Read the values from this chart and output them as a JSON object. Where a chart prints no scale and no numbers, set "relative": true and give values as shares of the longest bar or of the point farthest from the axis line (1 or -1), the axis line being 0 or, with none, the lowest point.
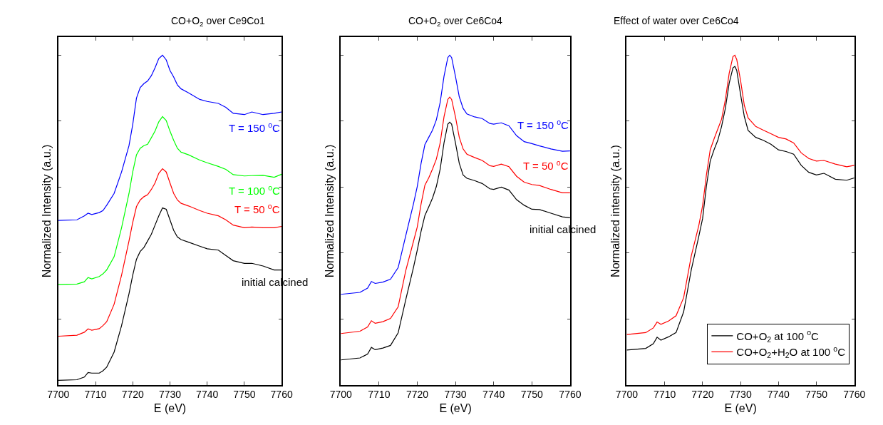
{
  "chart_data": [
    {
      "type": "line",
      "title": "CO+O$_{2}$ over Ce9Co1",
      "xlabel": "E (eV)",
      "ylabel": "Normalized Intensity (a.u.)",
      "relative": true,
      "tick_labels": "x",
      "legend": false,
      "line_style": "solid",
      "xlim": [
        7700,
        7760
      ],
      "xticks": [
        7700,
        7710,
        7720,
        7730,
        7740,
        7750,
        7760
      ],
      "x": [
        7700,
        7705,
        7707,
        7708,
        7709,
        7711,
        7712,
        7713,
        7715,
        7717,
        7719,
        7720,
        7721,
        7722,
        7723,
        7724,
        7725,
        7726,
        7727,
        7728,
        7729,
        7730,
        7731,
        7732,
        7733,
        7735,
        7738,
        7740,
        7743,
        7745,
        7747,
        7750,
        7752,
        7755,
        7758,
        7760
      ],
      "series": [
        {
          "name": "T = 150 $^{o}$C",
          "color": "#0000ff",
          "values": [
            0.499,
            0.501,
            0.513,
            0.521,
            0.517,
            0.523,
            0.529,
            0.545,
            0.581,
            0.646,
            0.726,
            0.79,
            0.87,
            0.902,
            0.914,
            0.922,
            0.938,
            0.962,
            0.99,
            1.0,
            0.986,
            0.954,
            0.934,
            0.91,
            0.898,
            0.886,
            0.866,
            0.86,
            0.854,
            0.842,
            0.824,
            0.82,
            0.828,
            0.82,
            0.824,
            0.828
          ]
        },
        {
          "name": "T = 100 $^{o}$C",
          "color": "#00ff00",
          "values": [
            0.305,
            0.306,
            0.313,
            0.326,
            0.322,
            0.329,
            0.337,
            0.349,
            0.389,
            0.477,
            0.581,
            0.646,
            0.698,
            0.718,
            0.726,
            0.73,
            0.75,
            0.77,
            0.798,
            0.814,
            0.802,
            0.77,
            0.742,
            0.718,
            0.706,
            0.698,
            0.682,
            0.674,
            0.663,
            0.654,
            0.638,
            0.634,
            0.635,
            0.636,
            0.63,
            0.639
          ]
        },
        {
          "name": "T = 50 $^{o}$C",
          "color": "#ff0000",
          "values": [
            0.148,
            0.151,
            0.16,
            0.17,
            0.166,
            0.171,
            0.18,
            0.192,
            0.245,
            0.333,
            0.437,
            0.493,
            0.541,
            0.561,
            0.571,
            0.577,
            0.593,
            0.613,
            0.642,
            0.656,
            0.646,
            0.613,
            0.581,
            0.561,
            0.551,
            0.543,
            0.529,
            0.521,
            0.513,
            0.501,
            0.485,
            0.477,
            0.479,
            0.477,
            0.477,
            0.481
          ]
        },
        {
          "name": "initial calcined",
          "color": "#000000",
          "values": [
            0.014,
            0.016,
            0.024,
            0.038,
            0.036,
            0.036,
            0.043,
            0.054,
            0.1,
            0.18,
            0.277,
            0.333,
            0.381,
            0.405,
            0.417,
            0.437,
            0.457,
            0.485,
            0.513,
            0.537,
            0.533,
            0.501,
            0.469,
            0.449,
            0.441,
            0.433,
            0.421,
            0.413,
            0.409,
            0.393,
            0.377,
            0.369,
            0.369,
            0.361,
            0.349,
            0.349
          ]
        }
      ]
    },
    {
      "type": "line",
      "title": "CO+O$_{2}$ over Ce6Co4",
      "xlabel": "E (eV)",
      "ylabel": "Normalized Intensity (a.u.)",
      "relative": true,
      "tick_labels": "x",
      "legend": false,
      "line_style": "solid",
      "xlim": [
        7700,
        7760
      ],
      "xticks": [
        7700,
        7710,
        7720,
        7730,
        7740,
        7750,
        7760
      ],
      "x": [
        7700,
        7705,
        7707,
        7708,
        7709,
        7711,
        7713,
        7715,
        7717,
        7719,
        7720,
        7721,
        7722,
        7723,
        7724,
        7725,
        7726,
        7727,
        7728,
        7728.5,
        7729,
        7730,
        7731,
        7732,
        7733,
        7735,
        7737,
        7739,
        7740,
        7742,
        7744,
        7746,
        7748,
        7750,
        7752,
        7755,
        7758,
        7760
      ],
      "series": [
        {
          "name": "T = 150 $^{o}$C",
          "color": "#0000ff",
          "values": [
            0.275,
            0.281,
            0.294,
            0.314,
            0.308,
            0.312,
            0.321,
            0.356,
            0.453,
            0.549,
            0.602,
            0.672,
            0.729,
            0.751,
            0.773,
            0.804,
            0.857,
            0.936,
            0.993,
            1.0,
            0.993,
            0.936,
            0.874,
            0.839,
            0.822,
            0.813,
            0.808,
            0.793,
            0.791,
            0.795,
            0.786,
            0.756,
            0.738,
            0.732,
            0.725,
            0.716,
            0.709,
            0.71
          ]
        },
        {
          "name": "T = 50 $^{o}$C",
          "color": "#ff0000",
          "values": [
            0.156,
            0.163,
            0.176,
            0.195,
            0.187,
            0.192,
            0.202,
            0.237,
            0.347,
            0.435,
            0.479,
            0.549,
            0.606,
            0.628,
            0.655,
            0.685,
            0.734,
            0.813,
            0.866,
            0.873,
            0.866,
            0.813,
            0.751,
            0.716,
            0.7,
            0.69,
            0.681,
            0.665,
            0.663,
            0.67,
            0.662,
            0.633,
            0.615,
            0.608,
            0.605,
            0.593,
            0.583,
            0.583
          ]
        },
        {
          "name": "initial calcined",
          "color": "#000000",
          "values": [
            0.076,
            0.082,
            0.094,
            0.114,
            0.107,
            0.112,
            0.12,
            0.158,
            0.259,
            0.356,
            0.409,
            0.466,
            0.514,
            0.54,
            0.567,
            0.602,
            0.655,
            0.734,
            0.791,
            0.797,
            0.791,
            0.734,
            0.672,
            0.637,
            0.627,
            0.62,
            0.611,
            0.595,
            0.593,
            0.6,
            0.591,
            0.562,
            0.545,
            0.533,
            0.532,
            0.521,
            0.51,
            0.507
          ]
        }
      ]
    },
    {
      "type": "line",
      "title": "Effect of water over Ce6Co4",
      "xlabel": "E (eV)",
      "ylabel": "Normalized intensity (a.u.)",
      "relative": true,
      "tick_labels": "x",
      "legend": "bottom right",
      "line_style": "solid",
      "xlim": [
        7700,
        7760
      ],
      "xticks": [
        7700,
        7710,
        7720,
        7730,
        7740,
        7750,
        7760
      ],
      "x": [
        7700,
        7705,
        7707,
        7708,
        7709,
        7711,
        7713,
        7715,
        7717,
        7719,
        7720,
        7721,
        7722,
        7723,
        7724,
        7725,
        7726,
        7727,
        7728,
        7728.5,
        7729,
        7730,
        7731,
        7732,
        7734,
        7736,
        7738,
        7740,
        7742,
        7744,
        7746,
        7748,
        7750,
        7752,
        7755,
        7758,
        7760
      ],
      "series": [
        {
          "name": "CO+O$_{2}$ at 100 $^{o}$C",
          "color": "#000000",
          "values": [
            0.106,
            0.111,
            0.125,
            0.145,
            0.136,
            0.146,
            0.159,
            0.222,
            0.349,
            0.451,
            0.505,
            0.603,
            0.679,
            0.713,
            0.742,
            0.784,
            0.839,
            0.915,
            0.962,
            0.966,
            0.954,
            0.882,
            0.814,
            0.772,
            0.751,
            0.742,
            0.73,
            0.713,
            0.708,
            0.7,
            0.666,
            0.645,
            0.637,
            0.642,
            0.624,
            0.621,
            0.628
          ]
        },
        {
          "name": "CO+O$_{2}$+H$_{2}$O at 100 $^{o}$C",
          "color": "#ff0000",
          "values": [
            0.153,
            0.159,
            0.173,
            0.191,
            0.184,
            0.194,
            0.21,
            0.265,
            0.391,
            0.484,
            0.544,
            0.637,
            0.713,
            0.746,
            0.776,
            0.806,
            0.865,
            0.945,
            0.996,
            1.0,
            0.987,
            0.924,
            0.848,
            0.81,
            0.784,
            0.773,
            0.762,
            0.751,
            0.746,
            0.734,
            0.704,
            0.687,
            0.679,
            0.681,
            0.67,
            0.662,
            0.666
          ]
        }
      ]
    }
  ]
}
